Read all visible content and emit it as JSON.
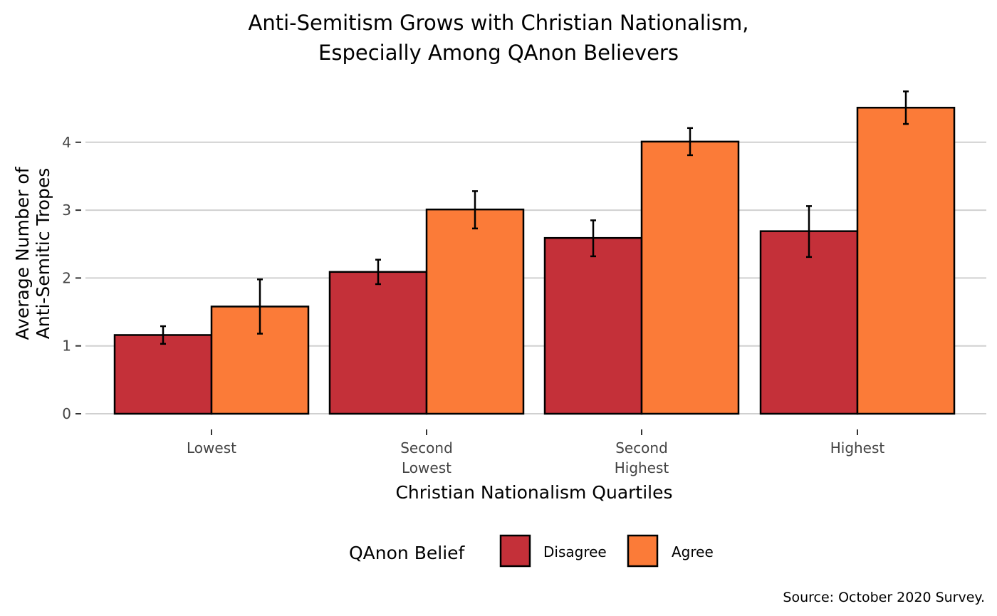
{
  "chart_data": {
    "type": "bar",
    "title_lines": [
      "Anti-Semitism Grows with Christian Nationalism,",
      "Especially Among QAnon Believers"
    ],
    "xlabel": "Christian Nationalism Quartiles",
    "ylabel_lines": [
      "Average Number of",
      "Anti-Semitic Tropes"
    ],
    "categories": [
      [
        "Lowest"
      ],
      [
        "Second",
        "Lowest"
      ],
      [
        "Second",
        "Highest"
      ],
      [
        "Highest"
      ]
    ],
    "yticks": [
      0,
      1,
      2,
      3,
      4
    ],
    "ylim": [
      0,
      4.75
    ],
    "grid": true,
    "legend_position": "bottom",
    "legend_title": "QAnon Belief",
    "series": [
      {
        "name": "Disagree",
        "color": "#c43039",
        "values": [
          1.16,
          2.09,
          2.59,
          2.69
        ],
        "error_low": [
          1.03,
          1.91,
          2.32,
          2.31
        ],
        "error_high": [
          1.29,
          2.27,
          2.85,
          3.06
        ]
      },
      {
        "name": "Agree",
        "color": "#fb7b38",
        "values": [
          1.58,
          3.01,
          4.01,
          4.51
        ],
        "error_low": [
          1.18,
          2.73,
          3.81,
          4.27
        ],
        "error_high": [
          1.98,
          3.28,
          4.21,
          4.75
        ]
      }
    ],
    "caption": "Source: October 2020 Survey."
  }
}
